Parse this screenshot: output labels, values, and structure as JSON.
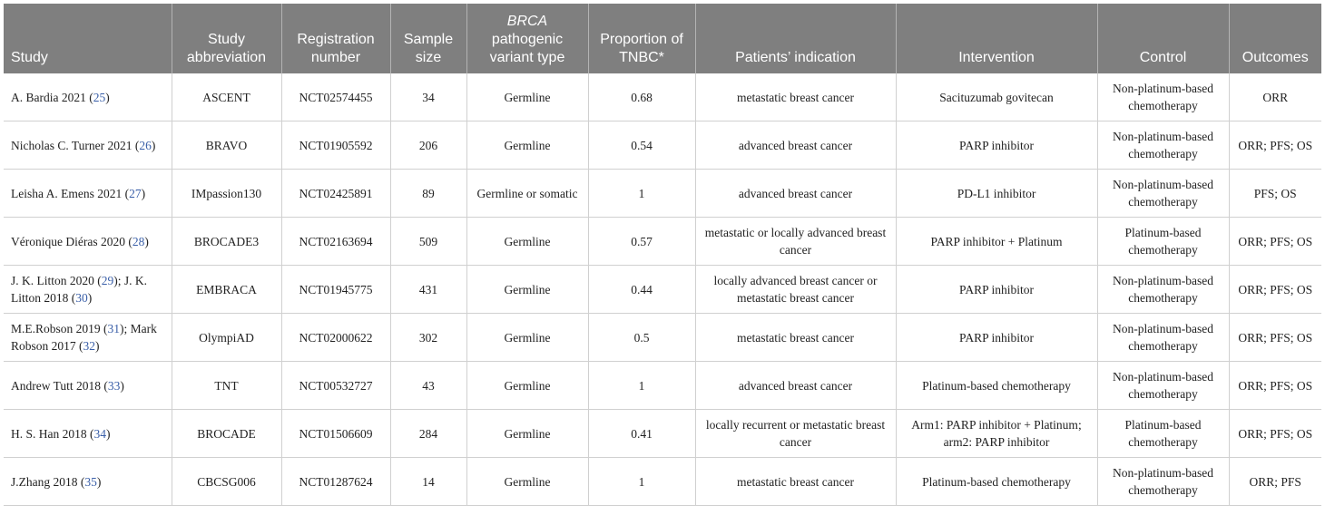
{
  "table": {
    "headers": [
      {
        "pre": "",
        "italic": "",
        "post": "Study"
      },
      {
        "pre": "Study abbreviation",
        "italic": "",
        "post": ""
      },
      {
        "pre": "Registration number",
        "italic": "",
        "post": ""
      },
      {
        "pre": "Sample size",
        "italic": "",
        "post": ""
      },
      {
        "pre": "",
        "italic": "BRCA",
        "post": "pathogenic variant type"
      },
      {
        "pre": "Proportion of TNBC*",
        "italic": "",
        "post": ""
      },
      {
        "pre": "Patients’ indication",
        "italic": "",
        "post": ""
      },
      {
        "pre": "Intervention",
        "italic": "",
        "post": ""
      },
      {
        "pre": "Control",
        "italic": "",
        "post": ""
      },
      {
        "pre": "Outcomes",
        "italic": "",
        "post": ""
      }
    ],
    "rows": [
      {
        "study": [
          {
            "text": "A. Bardia 2021 ("
          },
          {
            "text": "25",
            "ref": true
          },
          {
            "text": ")"
          }
        ],
        "cells": [
          "ASCENT",
          "NCT02574455",
          "34",
          "Germline",
          "0.68",
          "metastatic breast cancer",
          "Sacituzumab govitecan",
          "Non-platinum-based chemotherapy",
          "ORR"
        ]
      },
      {
        "study": [
          {
            "text": "Nicholas C. Turner 2021 ("
          },
          {
            "text": "26",
            "ref": true
          },
          {
            "text": ")"
          }
        ],
        "cells": [
          "BRAVO",
          "NCT01905592",
          "206",
          "Germline",
          "0.54",
          "advanced breast cancer",
          "PARP inhibitor",
          "Non-platinum-based chemotherapy",
          "ORR; PFS; OS"
        ]
      },
      {
        "study": [
          {
            "text": "Leisha A. Emens 2021 ("
          },
          {
            "text": "27",
            "ref": true
          },
          {
            "text": ")"
          }
        ],
        "cells": [
          "IMpassion130",
          "NCT02425891",
          "89",
          "Germline or somatic",
          "1",
          "advanced breast cancer",
          "PD-L1 inhibitor",
          "Non-platinum-based chemotherapy",
          "PFS; OS"
        ]
      },
      {
        "study": [
          {
            "text": "Véronique Diéras 2020 ("
          },
          {
            "text": "28",
            "ref": true
          },
          {
            "text": ")"
          }
        ],
        "cells": [
          "BROCADE3",
          "NCT02163694",
          "509",
          "Germline",
          "0.57",
          "metastatic or locally advanced breast cancer",
          "PARP inhibitor + Platinum",
          "Platinum-based chemotherapy",
          "ORR; PFS; OS"
        ]
      },
      {
        "study": [
          {
            "text": "J. K. Litton 2020 ("
          },
          {
            "text": "29",
            "ref": true
          },
          {
            "text": "); J. K. Litton 2018 ("
          },
          {
            "text": "30",
            "ref": true
          },
          {
            "text": ")"
          }
        ],
        "cells": [
          "EMBRACA",
          "NCT01945775",
          "431",
          "Germline",
          "0.44",
          "locally advanced breast cancer or metastatic breast cancer",
          "PARP inhibitor",
          "Non-platinum-based chemotherapy",
          "ORR; PFS; OS"
        ]
      },
      {
        "study": [
          {
            "text": "M.E.Robson 2019 ("
          },
          {
            "text": "31",
            "ref": true
          },
          {
            "text": "); Mark Robson 2017 ("
          },
          {
            "text": "32",
            "ref": true
          },
          {
            "text": ")"
          }
        ],
        "cells": [
          "OlympiAD",
          "NCT02000622",
          "302",
          "Germline",
          "0.5",
          "metastatic breast cancer",
          "PARP inhibitor",
          "Non-platinum-based chemotherapy",
          "ORR; PFS; OS"
        ]
      },
      {
        "study": [
          {
            "text": "Andrew Tutt 2018 ("
          },
          {
            "text": "33",
            "ref": true
          },
          {
            "text": ")"
          }
        ],
        "cells": [
          "TNT",
          "NCT00532727",
          "43",
          "Germline",
          "1",
          "advanced breast cancer",
          "Platinum-based chemotherapy",
          "Non-platinum-based chemotherapy",
          "ORR; PFS; OS"
        ]
      },
      {
        "study": [
          {
            "text": "H. S. Han 2018 ("
          },
          {
            "text": "34",
            "ref": true
          },
          {
            "text": ")"
          }
        ],
        "cells": [
          "BROCADE",
          "NCT01506609",
          "284",
          "Germline",
          "0.41",
          "locally recurrent or metastatic breast cancer",
          "Arm1: PARP inhibitor + Platinum; arm2: PARP inhibitor",
          "Platinum-based chemotherapy",
          "ORR; PFS; OS"
        ]
      },
      {
        "study": [
          {
            "text": "J.Zhang 2018 ("
          },
          {
            "text": "35",
            "ref": true
          },
          {
            "text": ")"
          }
        ],
        "cells": [
          "CBCSG006",
          "NCT01287624",
          "14",
          "Germline",
          "1",
          "metastatic breast cancer",
          "Platinum-based chemotherapy",
          "Non-platinum-based chemotherapy",
          "ORR; PFS"
        ]
      }
    ]
  }
}
